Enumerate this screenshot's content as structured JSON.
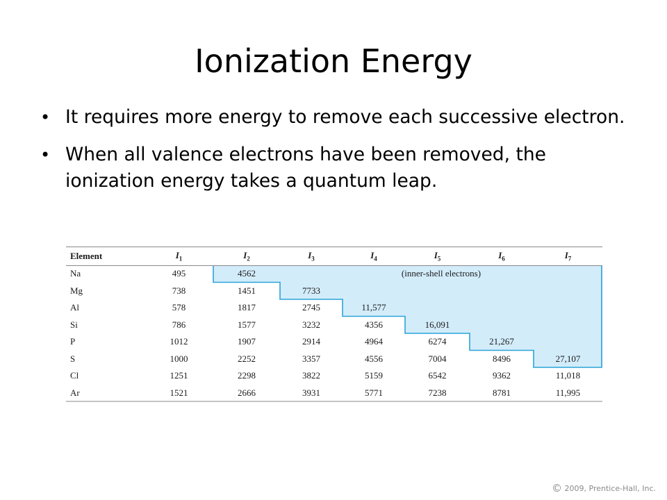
{
  "slide": {
    "title": "Ionization Energy",
    "bullets": [
      "It requires more energy to remove each successive electron.",
      "When all valence electrons have been removed, the ionization energy takes a quantum leap."
    ]
  },
  "table": {
    "header": {
      "element": "Element",
      "columns": [
        {
          "sym": "I",
          "sub": "1"
        },
        {
          "sym": "I",
          "sub": "2"
        },
        {
          "sym": "I",
          "sub": "3"
        },
        {
          "sym": "I",
          "sub": "4"
        },
        {
          "sym": "I",
          "sub": "5"
        },
        {
          "sym": "I",
          "sub": "6"
        },
        {
          "sym": "I",
          "sub": "7"
        }
      ]
    },
    "rows": [
      {
        "element": "Na",
        "values": [
          "495",
          "4562"
        ],
        "note": "(inner-shell electrons)"
      },
      {
        "element": "Mg",
        "values": [
          "738",
          "1451",
          "7733"
        ]
      },
      {
        "element": "Al",
        "values": [
          "578",
          "1817",
          "2745",
          "11,577"
        ]
      },
      {
        "element": "Si",
        "values": [
          "786",
          "1577",
          "3232",
          "4356",
          "16,091"
        ]
      },
      {
        "element": "P",
        "values": [
          "1012",
          "1907",
          "2914",
          "4964",
          "6274",
          "21,267"
        ]
      },
      {
        "element": "S",
        "values": [
          "1000",
          "2252",
          "3357",
          "4556",
          "7004",
          "8496",
          "27,107"
        ]
      },
      {
        "element": "Cl",
        "values": [
          "1251",
          "2298",
          "3822",
          "5159",
          "6542",
          "9362",
          "11,018"
        ]
      },
      {
        "element": "Ar",
        "values": [
          "1521",
          "2666",
          "3931",
          "5771",
          "7238",
          "8781",
          "11,995"
        ]
      }
    ],
    "colors": {
      "inner_shell_fill": "#d3ecfa",
      "boundary_line": "#2aa4d8",
      "rule_line": "#888888"
    }
  },
  "footer": {
    "copyright_symbol": "©",
    "copyright_text": "2009, Prentice-Hall, Inc."
  }
}
